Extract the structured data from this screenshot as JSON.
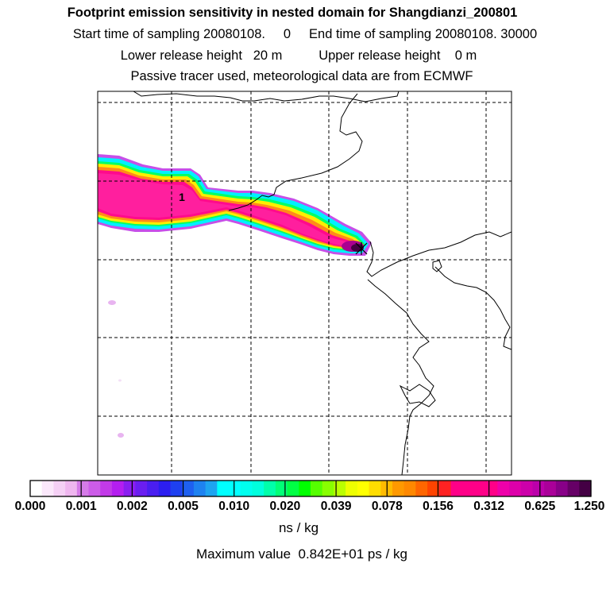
{
  "title": "Footprint emission sensitivity in nested domain for Shangdianzi_200801",
  "sampling": {
    "start_label": "Start time of sampling",
    "start_value": "20080108.",
    "start_hour": "0",
    "end_label": "End time of sampling",
    "end_value": "20080108. 30000"
  },
  "release": {
    "lower_label": "Lower release height",
    "lower_value": "20 m",
    "upper_label": "Upper release height",
    "upper_value": "0 m"
  },
  "note": "Passive tracer used, meteorological data are from ECMWF",
  "map": {
    "contour_label": "1",
    "receptor": "receptor-marker"
  },
  "colorbar": {
    "tick_labels": [
      "0.000",
      "0.001",
      "0.002",
      "0.005",
      "0.010",
      "0.020",
      "0.039",
      "0.078",
      "0.156",
      "0.312",
      "0.625",
      "1.250"
    ],
    "colors": [
      "#ffffff",
      "#fbe8fb",
      "#f5d0f5",
      "#efb6ef",
      "#d57be8",
      "#cc5ce8",
      "#c23ae8",
      "#b41ef0",
      "#8a1ef0",
      "#6a1ef0",
      "#4a1ef0",
      "#2c1ef0",
      "#1e40f0",
      "#1e60f0",
      "#1e82f0",
      "#1ea4f0",
      "#00ffff",
      "#00ffff",
      "#00ffee",
      "#00ffdd",
      "#00ffaa",
      "#00ff77",
      "#00ff44",
      "#00ff00",
      "#55ff00",
      "#88ff00",
      "#bbff00",
      "#eeff00",
      "#ffff00",
      "#ffdd00",
      "#ffbb00",
      "#ff9900",
      "#ff8800",
      "#ff6600",
      "#ff4400",
      "#ff2222",
      "#ff0088",
      "#ff0088",
      "#ff0088",
      "#ff0088",
      "#ee00aa",
      "#dd00aa",
      "#cc00aa",
      "#bb00aa",
      "#aa0099",
      "#880088",
      "#660066",
      "#440044"
    ]
  },
  "units": "ns / kg",
  "maximum": {
    "label": "Maximum value",
    "value": "0.842E+01 ps / kg"
  }
}
